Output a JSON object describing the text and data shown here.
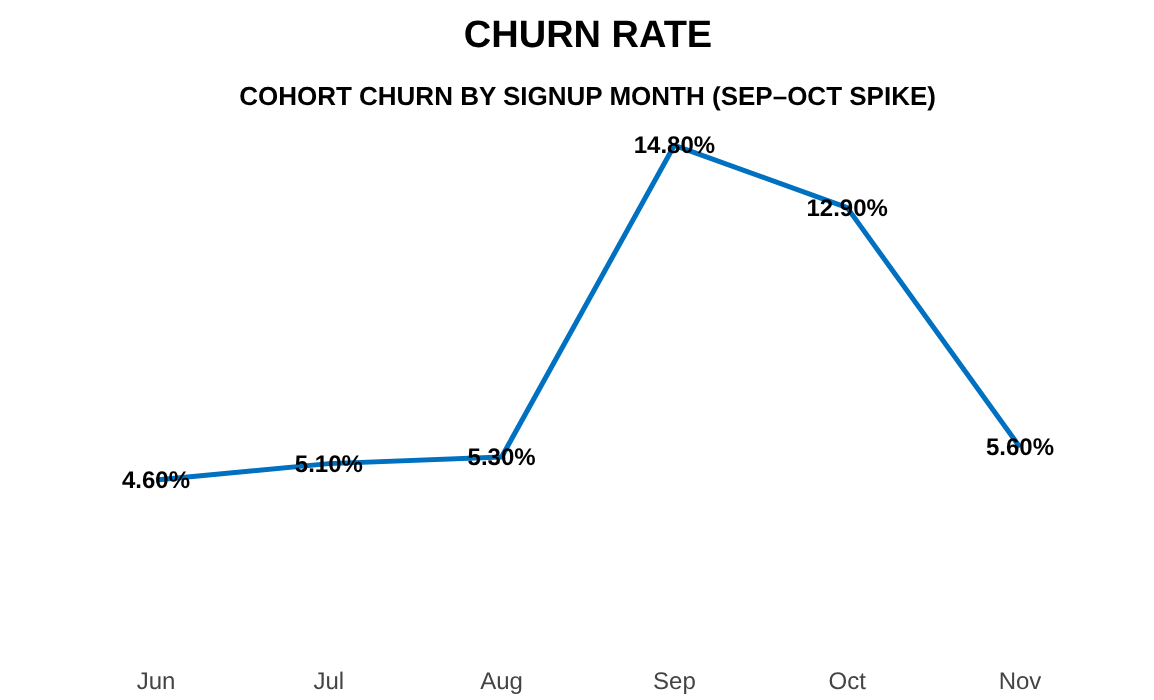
{
  "chart_data": {
    "type": "line",
    "title": "CHURN RATE",
    "subtitle": "COHORT CHURN BY SIGNUP MONTH (SEP–OCT SPIKE)",
    "categories": [
      "Jun",
      "Jul",
      "Aug",
      "Sep",
      "Oct",
      "Nov"
    ],
    "series": [
      {
        "color": "#0070c0",
        "values": [
          4.6,
          5.1,
          5.3,
          14.8,
          12.9,
          5.6
        ],
        "value_labels": [
          "4.60%",
          "5.10%",
          "5.30%",
          "14.80%",
          "12.90%",
          "5.60%"
        ]
      }
    ],
    "tick_labels": "x",
    "grid": false,
    "line_style": "solid"
  }
}
